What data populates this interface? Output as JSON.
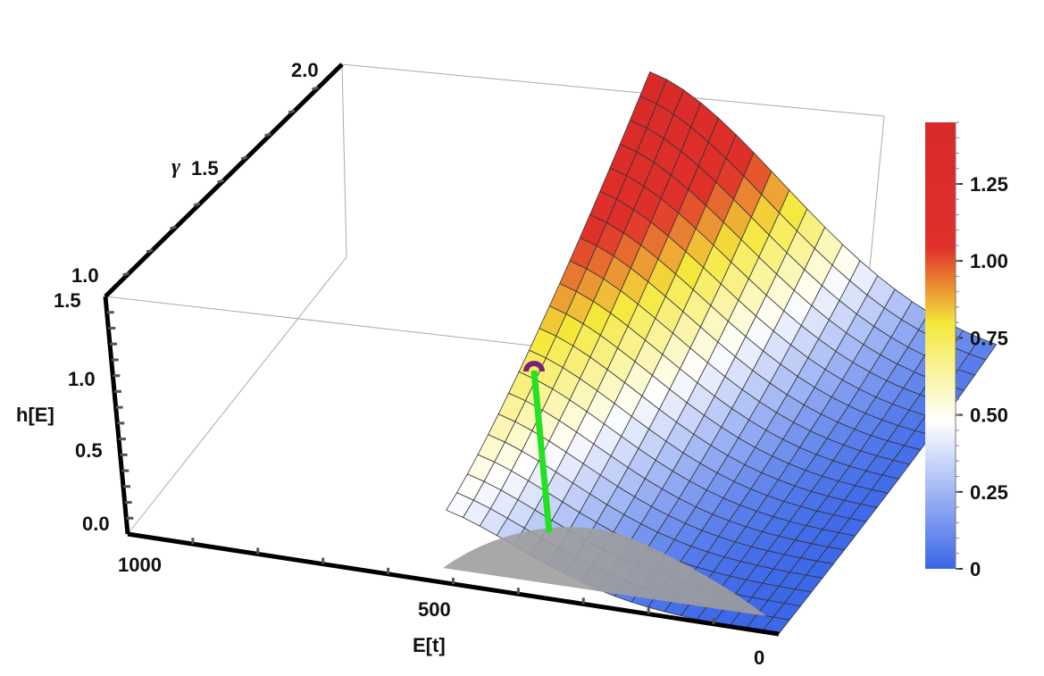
{
  "chart_data": {
    "type": "surface3d",
    "surface_function": "h[E] peaks along gamma; surface sampled on grid",
    "x_axis": {
      "label": "E[t]",
      "ticks": [
        "1000",
        "500",
        "0"
      ],
      "range": [
        0,
        1000
      ]
    },
    "y_axis": {
      "label": "γ",
      "ticks": [
        "1.0",
        "1.5",
        "2.0"
      ],
      "range": [
        1.0,
        2.0
      ]
    },
    "z_axis": {
      "label": "h[E]",
      "ticks": [
        "0.0",
        "0.5",
        "1.0",
        "1.5"
      ],
      "range": [
        0,
        1.5
      ]
    },
    "colorbar": {
      "ticks": [
        "0",
        "0.25",
        "0.50",
        "0.75",
        "1.00",
        "1.25"
      ],
      "tick_values": [
        0,
        0.25,
        0.5,
        0.75,
        1.0,
        1.25
      ],
      "range": [
        0,
        1.45
      ],
      "colors": [
        "#3a66e8",
        "#ffffff",
        "#f5e83a",
        "#d82a2a"
      ]
    },
    "marked_point": {
      "E": 520,
      "gamma": 1.62,
      "h": 0.95,
      "color": "#7a1f7a"
    },
    "marker_line_color": "#22e222",
    "grid": true
  }
}
